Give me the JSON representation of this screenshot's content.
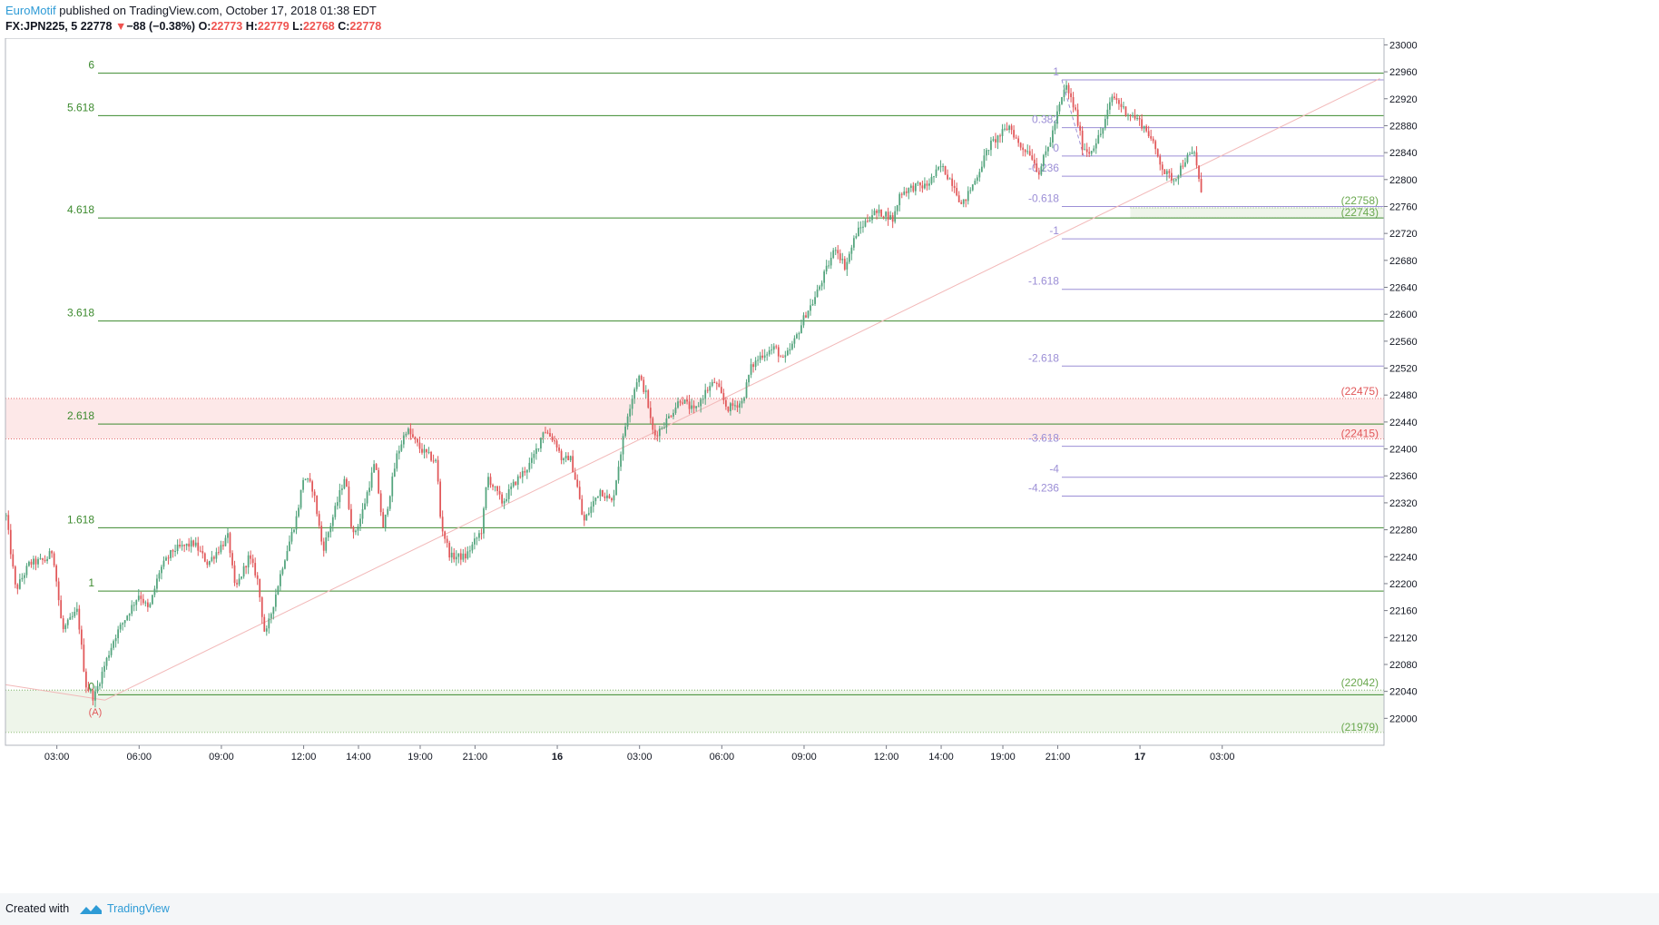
{
  "header": {
    "author": "EuroMotif",
    "published_text": "published on TradingView.com, October 17, 2018 01:38 EDT",
    "symbol": "FX:JPN225, 5",
    "last": "22778",
    "arrow": "▼",
    "change": "−88 (−0.38%)",
    "o_label": "O:",
    "o_value": "22773",
    "h_label": "H:",
    "h_value": "22779",
    "l_label": "L:",
    "l_value": "22768",
    "c_label": "C:",
    "c_value": "22778"
  },
  "footer": {
    "created_with": "Created with",
    "brand": "TradingView"
  },
  "colors": {
    "up": "#53a47d",
    "down": "#e15759",
    "fib_ext": "#3c8a2e",
    "fib_ret": "#9c8fd6",
    "red_zone": "#fde8e8",
    "green_zone": "#eef5ea",
    "red_text": "#e15759",
    "green_text": "#6aa84f"
  },
  "chart_data": {
    "type": "candlestick",
    "symbol": "FX:JPN225",
    "interval": "5",
    "y_range": [
      21960,
      23010
    ],
    "y_ticks": [
      22000,
      22040,
      22080,
      22120,
      22160,
      22200,
      22240,
      22280,
      22320,
      22360,
      22400,
      22440,
      22480,
      22520,
      22560,
      22600,
      22640,
      22680,
      22720,
      22760,
      22800,
      22840,
      22880,
      22920,
      22960,
      23000
    ],
    "x_range_hours": [
      -3.75,
      96.8
    ],
    "x_ticks": [
      {
        "label": "03:00",
        "h": 0
      },
      {
        "label": "06:00",
        "h": 6
      },
      {
        "label": "09:00",
        "h": 12
      },
      {
        "label": "12:00",
        "h": 18
      },
      {
        "label": "14:00",
        "h": 22
      },
      {
        "label": "19:00",
        "h": 26.5
      },
      {
        "label": "21:00",
        "h": 30.5
      },
      {
        "label": "16",
        "h": 36.5
      },
      {
        "label": "03:00",
        "h": 42.5
      },
      {
        "label": "06:00",
        "h": 48.5
      },
      {
        "label": "09:00",
        "h": 54.5
      },
      {
        "label": "12:00",
        "h": 60.5
      },
      {
        "label": "14:00",
        "h": 64.5
      },
      {
        "label": "19:00",
        "h": 69
      },
      {
        "label": "21:00",
        "h": 73
      },
      {
        "label": "17",
        "h": 79
      },
      {
        "label": "03:00",
        "h": 85
      }
    ],
    "price_path": [
      [
        -3.7,
        22300
      ],
      [
        -3.0,
        22190
      ],
      [
        -2.0,
        22230
      ],
      [
        -0.8,
        22235
      ],
      [
        -0.3,
        22250
      ],
      [
        0.4,
        22130
      ],
      [
        1.5,
        22160
      ],
      [
        2.1,
        22050
      ],
      [
        2.7,
        22030
      ],
      [
        3.5,
        22080
      ],
      [
        4.2,
        22120
      ],
      [
        6.0,
        22185
      ],
      [
        6.7,
        22160
      ],
      [
        7.5,
        22220
      ],
      [
        8.5,
        22250
      ],
      [
        10.0,
        22260
      ],
      [
        11.0,
        22230
      ],
      [
        12.5,
        22270
      ],
      [
        13.0,
        22190
      ],
      [
        14.0,
        22240
      ],
      [
        14.6,
        22210
      ],
      [
        15.2,
        22120
      ],
      [
        16.5,
        22230
      ],
      [
        17.5,
        22300
      ],
      [
        18.0,
        22360
      ],
      [
        18.7,
        22340
      ],
      [
        19.4,
        22250
      ],
      [
        20.3,
        22310
      ],
      [
        21.0,
        22360
      ],
      [
        21.6,
        22270
      ],
      [
        22.2,
        22300
      ],
      [
        23.2,
        22380
      ],
      [
        23.8,
        22280
      ],
      [
        24.8,
        22390
      ],
      [
        25.5,
        22430
      ],
      [
        26.5,
        22400
      ],
      [
        27.7,
        22380
      ],
      [
        28.0,
        22290
      ],
      [
        28.7,
        22240
      ],
      [
        29.8,
        22240
      ],
      [
        31.0,
        22280
      ],
      [
        31.4,
        22360
      ],
      [
        32.5,
        22320
      ],
      [
        33.4,
        22350
      ],
      [
        34.6,
        22380
      ],
      [
        35.2,
        22410
      ],
      [
        35.5,
        22430
      ],
      [
        36.4,
        22410
      ],
      [
        36.9,
        22380
      ],
      [
        37.4,
        22390
      ],
      [
        38.0,
        22340
      ],
      [
        38.4,
        22290
      ],
      [
        39.6,
        22340
      ],
      [
        40.5,
        22320
      ],
      [
        41.0,
        22380
      ],
      [
        41.6,
        22450
      ],
      [
        42.4,
        22510
      ],
      [
        43.0,
        22480
      ],
      [
        43.4,
        22430
      ],
      [
        43.6,
        22420
      ],
      [
        44.4,
        22440
      ],
      [
        45.5,
        22475
      ],
      [
        46.5,
        22455
      ],
      [
        47.3,
        22485
      ],
      [
        48.0,
        22500
      ],
      [
        48.9,
        22460
      ],
      [
        50.0,
        22470
      ],
      [
        50.6,
        22520
      ],
      [
        51.4,
        22540
      ],
      [
        52.4,
        22550
      ],
      [
        53.0,
        22530
      ],
      [
        53.8,
        22560
      ],
      [
        54.6,
        22600
      ],
      [
        55.2,
        22620
      ],
      [
        56.0,
        22660
      ],
      [
        56.8,
        22700
      ],
      [
        57.5,
        22670
      ],
      [
        58.3,
        22720
      ],
      [
        59.5,
        22750
      ],
      [
        60.4,
        22750
      ],
      [
        61.0,
        22740
      ],
      [
        61.5,
        22780
      ],
      [
        62.6,
        22790
      ],
      [
        63.4,
        22790
      ],
      [
        64.5,
        22820
      ],
      [
        65.5,
        22790
      ],
      [
        66.0,
        22760
      ],
      [
        67.0,
        22800
      ],
      [
        68.0,
        22850
      ],
      [
        69.0,
        22870
      ],
      [
        69.5,
        22880
      ],
      [
        70.2,
        22850
      ],
      [
        71.0,
        22840
      ],
      [
        71.6,
        22810
      ],
      [
        72.5,
        22860
      ],
      [
        73.0,
        22900
      ],
      [
        73.6,
        22940
      ],
      [
        74.3,
        22900
      ],
      [
        74.8,
        22850
      ],
      [
        75.3,
        22840
      ],
      [
        76.2,
        22870
      ],
      [
        77.0,
        22925
      ],
      [
        78.0,
        22900
      ],
      [
        78.8,
        22890
      ],
      [
        79.6,
        22870
      ],
      [
        80.2,
        22840
      ],
      [
        80.8,
        22810
      ],
      [
        81.5,
        22800
      ],
      [
        82.3,
        22830
      ],
      [
        83.0,
        22840
      ],
      [
        83.3,
        22800
      ],
      [
        83.5,
        22772
      ]
    ],
    "fib_extension": [
      {
        "label": "6",
        "price": 22958
      },
      {
        "label": "5.618",
        "price": 22895
      },
      {
        "label": "4.618",
        "price": 22743
      },
      {
        "label": "3.618",
        "price": 22590
      },
      {
        "label": "2.618",
        "price": 22437
      },
      {
        "label": "1.618",
        "price": 22283
      },
      {
        "label": "1",
        "price": 22189
      },
      {
        "label": "0",
        "price": 22035
      }
    ],
    "fib_retracement": [
      {
        "label": "1",
        "price": 22948
      },
      {
        "label": "0.382",
        "price": 22877
      },
      {
        "label": "0",
        "price": 22835
      },
      {
        "label": "-0.236",
        "price": 22805
      },
      {
        "label": "-0.618",
        "price": 22760
      },
      {
        "label": "-1",
        "price": 22712
      },
      {
        "label": "-1.618",
        "price": 22637
      },
      {
        "label": "-2.618",
        "price": 22523
      },
      {
        "label": "-3.618",
        "price": 22404
      },
      {
        "label": "-4",
        "price": 22358
      },
      {
        "label": "-4.236",
        "price": 22330
      }
    ],
    "zones": [
      {
        "name": "resistance",
        "top": 22475,
        "bottom": 22415,
        "top_label": "(22475)",
        "bottom_label": "(22415)"
      },
      {
        "name": "support",
        "top": 22042,
        "bottom": 21979,
        "top_label": "(22042)",
        "bottom_label": "(21979)"
      },
      {
        "name": "target",
        "top": 22758,
        "bottom": 22743,
        "top_label": "(22758)",
        "bottom_label": "(22743)"
      }
    ],
    "trendline": {
      "from": [
        3.5,
        22027
      ],
      "to": [
        96.5,
        22950
      ]
    },
    "wave_label": {
      "text": "(A)",
      "h": 2.8,
      "price": 22010
    }
  }
}
